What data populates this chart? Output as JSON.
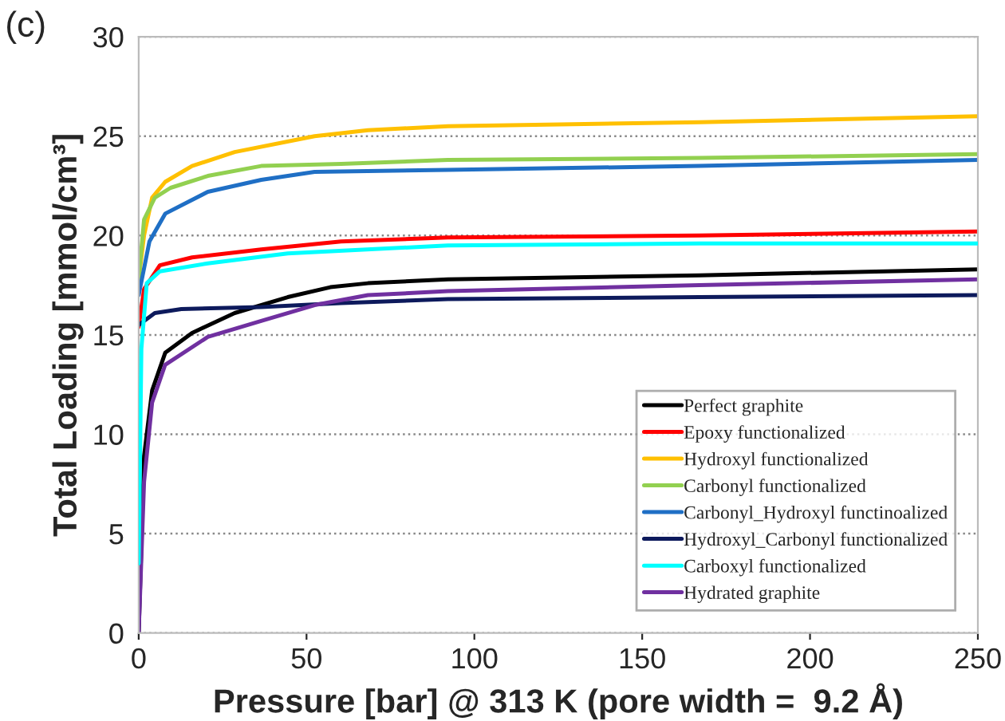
{
  "chart_data": {
    "type": "line",
    "xlabel": "Pressure [bar] @ 313 K (pore width =  9.2 Å)",
    "ylabel": "Total Loading [mmol/cm³]",
    "annotations": [
      "(c)"
    ],
    "xlim": [
      0,
      250
    ],
    "ylim": [
      0,
      30
    ],
    "xticks": [
      0,
      50,
      100,
      150,
      200,
      250
    ],
    "yticks": [
      0,
      5,
      10,
      15,
      20,
      25,
      30
    ],
    "grid": "y",
    "legend": "bottom right",
    "marker": "none",
    "line_style": "solid",
    "series": [
      {
        "name": "Perfect graphite",
        "color": "#000000",
        "x": [
          0,
          1.6,
          4,
          7.9,
          15.9,
          28.6,
          44.4,
          57.1,
          68.3,
          92.1,
          167,
          250
        ],
        "values": [
          0,
          8.9,
          12.2,
          14.1,
          15.1,
          16.1,
          16.9,
          17.4,
          17.6,
          17.8,
          18.0,
          18.3
        ]
      },
      {
        "name": "Epoxy functionalized",
        "color": "#ff0000",
        "x": [
          0,
          1.6,
          6.3,
          15.9,
          36.5,
          60.3,
          92.1,
          167,
          250
        ],
        "values": [
          15.4,
          17.3,
          18.5,
          18.9,
          19.3,
          19.7,
          19.9,
          20.0,
          20.2
        ]
      },
      {
        "name": "Hydroxyl functionalized",
        "color": "#ffc000",
        "x": [
          0,
          1.6,
          4,
          7.9,
          15.9,
          28.6,
          52.4,
          68.3,
          92.1,
          167,
          250
        ],
        "values": [
          17.8,
          20.0,
          21.9,
          22.7,
          23.5,
          24.2,
          25.0,
          25.3,
          25.5,
          25.7,
          26.0
        ]
      },
      {
        "name": "Carbonyl functionalized",
        "color": "#92d050",
        "x": [
          0,
          1.6,
          4.8,
          9.5,
          20.6,
          36.5,
          60.3,
          92.1,
          167,
          250
        ],
        "values": [
          17.8,
          20.8,
          21.9,
          22.4,
          23.0,
          23.5,
          23.6,
          23.8,
          23.9,
          24.1
        ]
      },
      {
        "name": "Carbonyl_Hydroxyl functinoalized",
        "color": "#1f6fc5",
        "x": [
          0,
          3.2,
          7.9,
          20.6,
          36.5,
          52.4,
          92.1,
          167,
          250
        ],
        "values": [
          17.0,
          19.7,
          21.1,
          22.2,
          22.8,
          23.2,
          23.3,
          23.5,
          23.8
        ]
      },
      {
        "name": "Hydroxyl_Carbonyl functionalized",
        "color": "#0d1a5c",
        "x": [
          0,
          4.8,
          12.7,
          36.5,
          60.3,
          92.1,
          167,
          250
        ],
        "values": [
          15.5,
          16.1,
          16.3,
          16.4,
          16.6,
          16.8,
          16.9,
          17.0
        ]
      },
      {
        "name": "Carboxyl functionalized",
        "color": "#00ffff",
        "x": [
          0,
          0.8,
          2.4,
          6.3,
          20.6,
          44.4,
          92.1,
          167,
          250
        ],
        "values": [
          3.5,
          14.3,
          17.6,
          18.2,
          18.6,
          19.1,
          19.5,
          19.6,
          19.6
        ]
      },
      {
        "name": "Hydrated graphite",
        "color": "#7030a0",
        "x": [
          0,
          1.6,
          4,
          7.9,
          20.6,
          36.5,
          52.4,
          68.3,
          92.1,
          167,
          250
        ],
        "values": [
          0,
          7.6,
          11.6,
          13.5,
          14.9,
          15.7,
          16.5,
          17.0,
          17.2,
          17.5,
          17.8
        ]
      }
    ]
  }
}
